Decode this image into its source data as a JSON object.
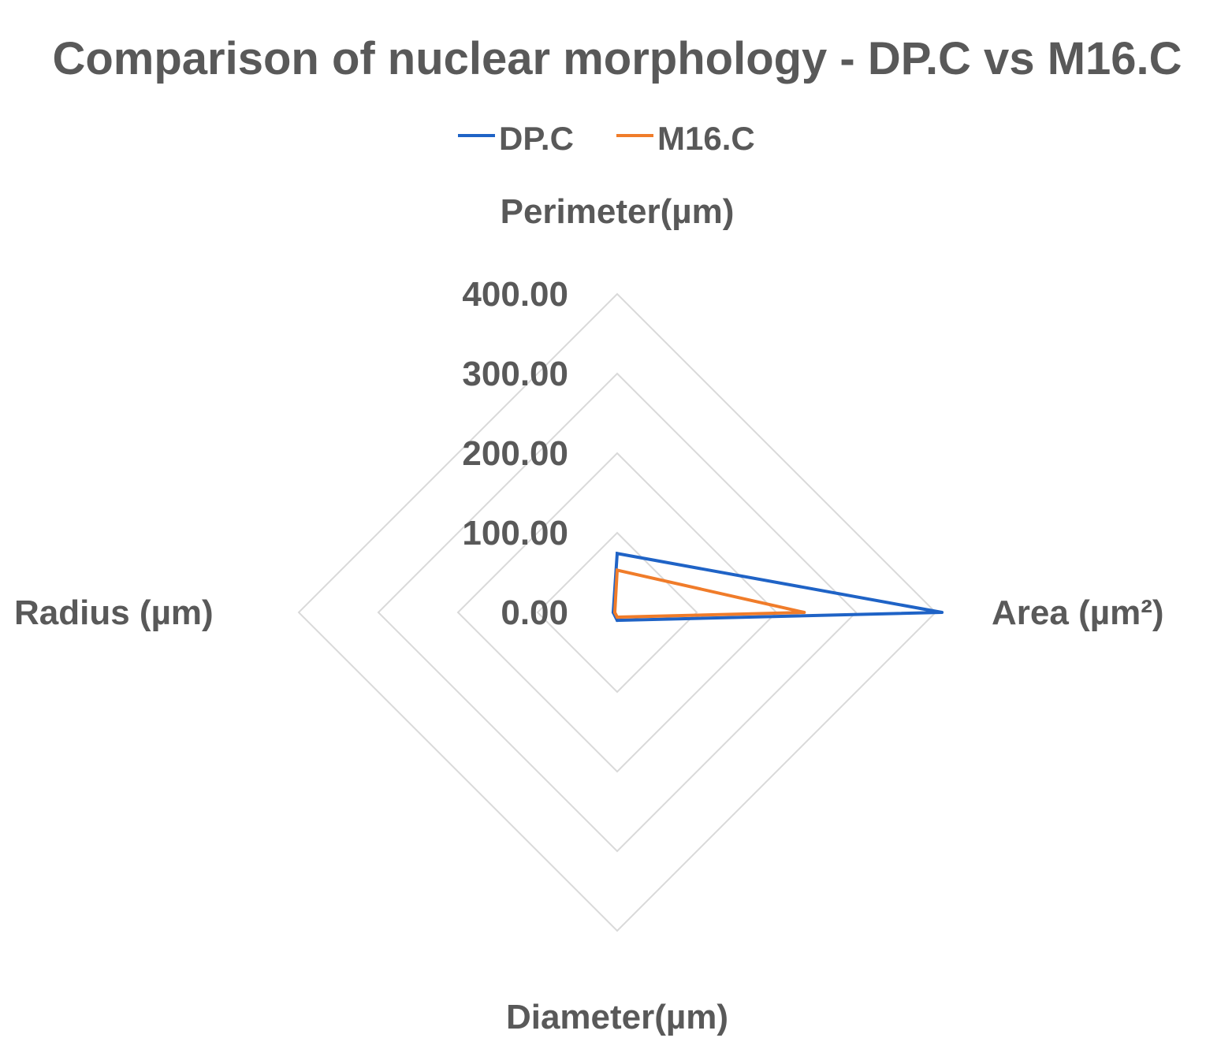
{
  "chart_data": {
    "type": "radar",
    "title": "Comparison of nuclear morphology - DP.C vs M16.C",
    "axes": [
      "Perimeter(µm)",
      "Area (µm²)",
      "Diameter(µm)",
      "Radius (µm)"
    ],
    "ticks": [
      "0.00",
      "100.00",
      "200.00",
      "300.00",
      "400.00"
    ],
    "rmin": 0,
    "rmax": 400,
    "grid_step": 100,
    "legend_position": "top",
    "series": [
      {
        "name": "DP.C",
        "values": [
          74,
          408,
          10,
          5
        ],
        "color": "#1f63c6"
      },
      {
        "name": "M16.C",
        "values": [
          53,
          235,
          6,
          3
        ],
        "color": "#f07c2a"
      }
    ]
  }
}
